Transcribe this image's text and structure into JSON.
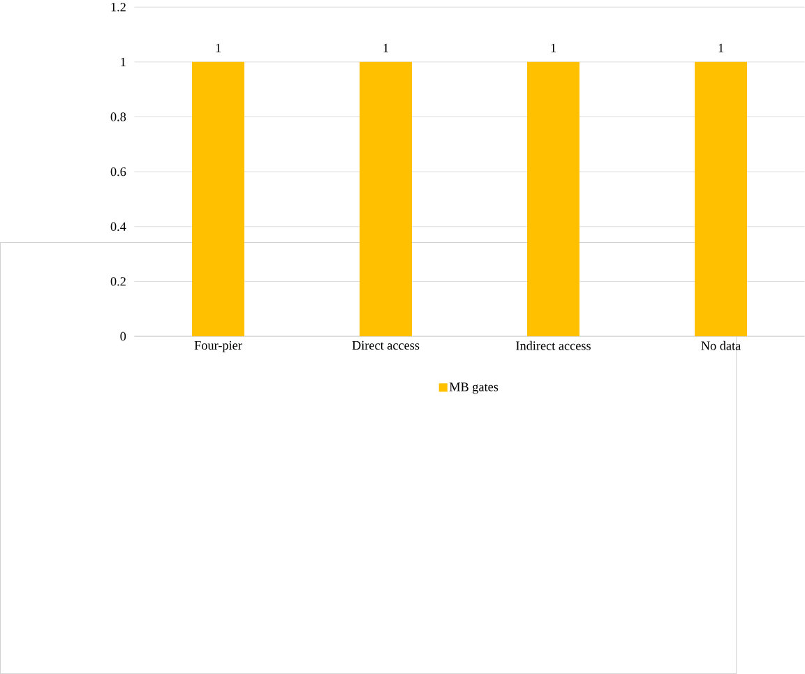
{
  "chart_data": {
    "type": "bar",
    "categories": [
      "Four-pier",
      "Direct access",
      "Indirect access",
      "No data"
    ],
    "series": [
      {
        "name": "MB gates",
        "color": "#ffc000",
        "values": [
          1,
          1,
          1,
          1
        ]
      }
    ],
    "ylim": [
      0,
      1.2
    ],
    "yticks": [
      0,
      0.2,
      0.4,
      0.6,
      0.8,
      1,
      1.2
    ],
    "grid": "y",
    "legend": "bottom",
    "data_labels": true
  }
}
